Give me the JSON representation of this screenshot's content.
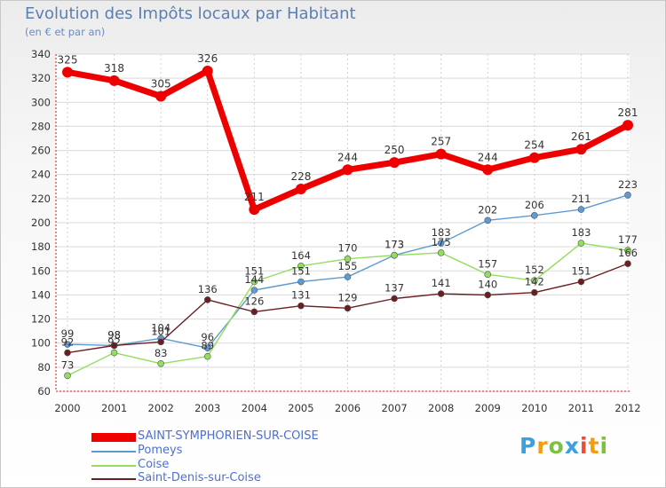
{
  "title": "Evolution des Impôts locaux par Habitant",
  "subtitle": "(en € et par an)",
  "logo": {
    "text": "Proxiti",
    "colors": [
      "#3aa0e0",
      "#f39c12",
      "#7cc242",
      "#3aa0e0",
      "#e74c3c",
      "#f39c12",
      "#7cc242"
    ]
  },
  "chart_data": {
    "type": "line",
    "title": "Evolution des Impôts locaux par Habitant",
    "subtitle": "(en € et par an)",
    "categories": [
      "2000",
      "2001",
      "2002",
      "2003",
      "2004",
      "2005",
      "2006",
      "2007",
      "2008",
      "2009",
      "2010",
      "2011",
      "2012"
    ],
    "ylim": [
      60,
      340
    ],
    "yticks": [
      60,
      80,
      100,
      120,
      140,
      160,
      180,
      200,
      220,
      240,
      260,
      280,
      300,
      320,
      340
    ],
    "grid": true,
    "legend_position": "bottom-left",
    "series": [
      {
        "name": "SAINT-SYMPHORIEN-SUR-COISE",
        "color": "#ee0000",
        "emphasis": true,
        "values": [
          325,
          318,
          305,
          326,
          211,
          228,
          244,
          250,
          257,
          244,
          254,
          261,
          281
        ]
      },
      {
        "name": "Pomeys",
        "color": "#5f9bd0",
        "values": [
          99,
          98,
          104,
          96,
          144,
          151,
          155,
          173,
          183,
          202,
          206,
          211,
          223
        ]
      },
      {
        "name": "Coise",
        "color": "#93dd5f",
        "values": [
          73,
          92,
          83,
          89,
          151,
          164,
          170,
          173,
          175,
          157,
          152,
          183,
          177
        ]
      },
      {
        "name": "Saint-Denis-sur-Coise",
        "color": "#6b1e22",
        "values": [
          92,
          98,
          101,
          136,
          126,
          131,
          129,
          137,
          141,
          140,
          142,
          151,
          166
        ]
      }
    ]
  }
}
